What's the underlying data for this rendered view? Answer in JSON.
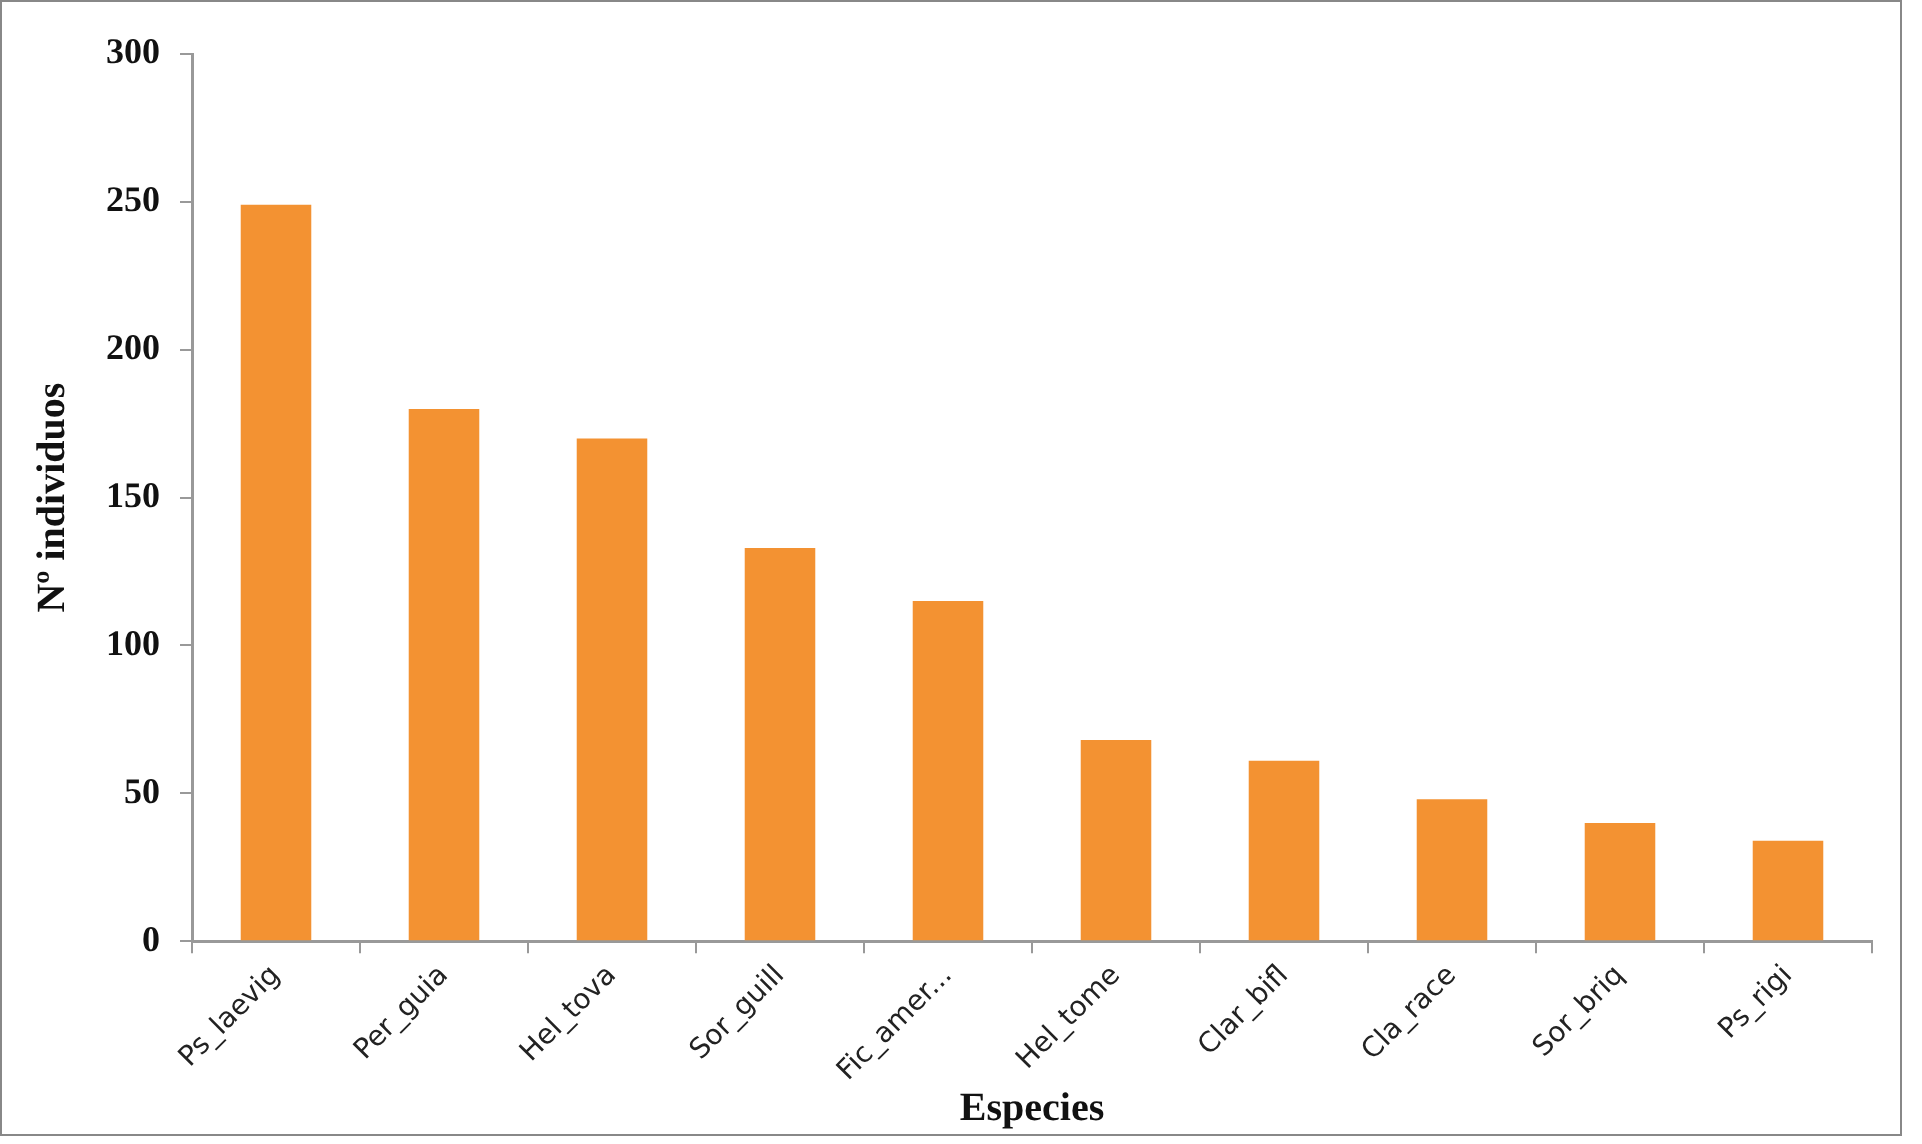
{
  "chart_data": {
    "type": "bar",
    "xlabel": "Especies",
    "ylabel": "Nº individuos",
    "categories": [
      "Ps_laevig",
      "Per_guia",
      "Hel_tova",
      "Sor_guill",
      "Fic_amer...",
      "Hel_tome",
      "Clar_bifl",
      "Cla_race",
      "Sor_briq",
      "Ps_rigi"
    ],
    "values": [
      249,
      180,
      170,
      133,
      115,
      68,
      61,
      48,
      40,
      34
    ],
    "color": "#f39232",
    "ylim": [
      0,
      300
    ],
    "yticks": [
      0,
      50,
      100,
      150,
      200,
      250,
      300
    ],
    "grid": false,
    "legend": false
  }
}
